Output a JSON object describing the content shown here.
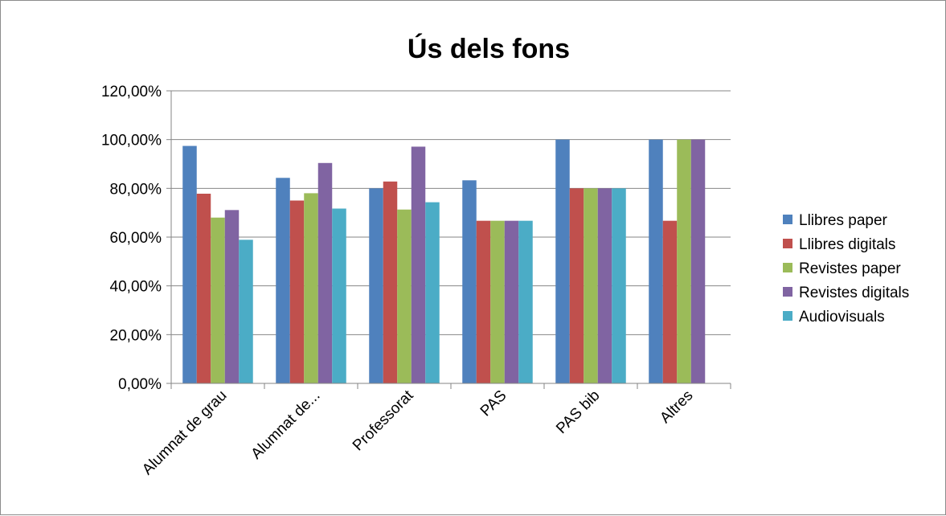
{
  "chart_data": {
    "type": "bar",
    "title": "Ús dels fons",
    "xlabel": "",
    "ylabel": "",
    "categories": [
      "Alumnat de grau",
      "Alumnat de...",
      "Professorat",
      "PAS",
      "PAS bib",
      "Altres"
    ],
    "ylim": [
      0,
      1.2
    ],
    "yticks": [
      0,
      0.2,
      0.4,
      0.6,
      0.8,
      1.0,
      1.2
    ],
    "ytick_labels": [
      "0,00%",
      "20,00%",
      "40,00%",
      "60,00%",
      "80,00%",
      "100,00%",
      "120,00%"
    ],
    "grid": true,
    "legend_position": "right",
    "series": [
      {
        "name": "Llibres paper",
        "color": "#4F81BD",
        "values": [
          0.974,
          0.843,
          0.8,
          0.833,
          1.0,
          1.0
        ]
      },
      {
        "name": "Llibres digitals",
        "color": "#C0504D",
        "values": [
          0.778,
          0.75,
          0.828,
          0.667,
          0.8,
          0.667
        ]
      },
      {
        "name": "Revistes paper",
        "color": "#9BBB59",
        "values": [
          0.68,
          0.78,
          0.713,
          0.667,
          0.8,
          1.0
        ]
      },
      {
        "name": "Revistes digitals",
        "color": "#8064A2",
        "values": [
          0.711,
          0.904,
          0.971,
          0.667,
          0.8,
          1.0
        ]
      },
      {
        "name": "Audiovisuals",
        "color": "#4BACC6",
        "values": [
          0.589,
          0.717,
          0.743,
          0.667,
          0.8,
          0
        ]
      }
    ]
  }
}
